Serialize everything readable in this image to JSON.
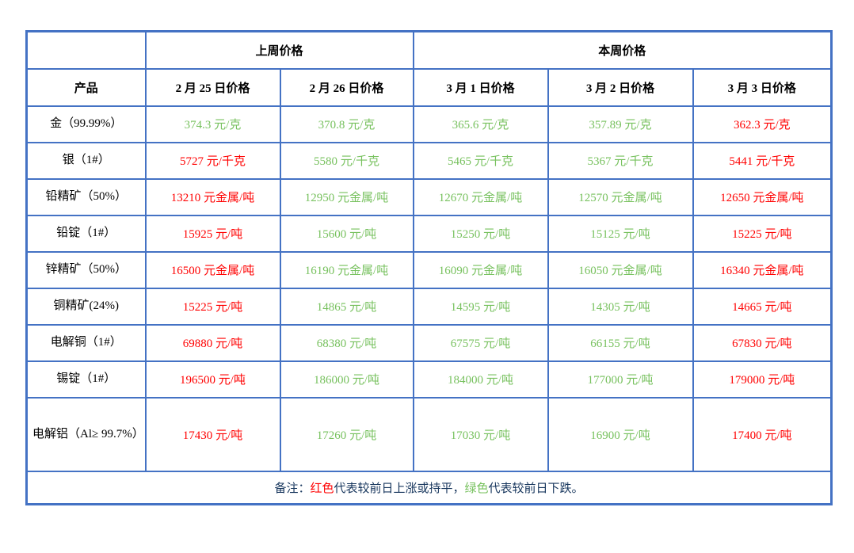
{
  "colors": {
    "border_blue": "#4472C4",
    "up_red": "#FF0000",
    "down_green": "#77C15E",
    "note_navy": "#17365D",
    "text_black": "#000000"
  },
  "table": {
    "group_headers": [
      {
        "label": "上周价格",
        "colspan": 2
      },
      {
        "label": "本周价格",
        "colspan": 3
      }
    ],
    "product_header": "产品",
    "date_headers": [
      "2 月 25 日价格",
      "2 月 26 日价格",
      "3 月 1 日价格",
      "3 月 2 日价格",
      "3 月 3 日价格"
    ],
    "rows": [
      {
        "product": "金（99.99%）",
        "prices": [
          {
            "text": "374.3 元/克",
            "trend": "down"
          },
          {
            "text": "370.8 元/克",
            "trend": "down"
          },
          {
            "text": "365.6 元/克",
            "trend": "down"
          },
          {
            "text": "357.89 元/克",
            "trend": "down"
          },
          {
            "text": "362.3 元/克",
            "trend": "up"
          }
        ]
      },
      {
        "product": "银（1#）",
        "prices": [
          {
            "text": "5727 元/千克",
            "trend": "up"
          },
          {
            "text": "5580 元/千克",
            "trend": "down"
          },
          {
            "text": "5465 元/千克",
            "trend": "down"
          },
          {
            "text": "5367 元/千克",
            "trend": "down"
          },
          {
            "text": "5441 元/千克",
            "trend": "up"
          }
        ]
      },
      {
        "product": "铅精矿（50%）",
        "prices": [
          {
            "text": "13210 元金属/吨",
            "trend": "up"
          },
          {
            "text": "12950 元金属/吨",
            "trend": "down"
          },
          {
            "text": "12670 元金属/吨",
            "trend": "down"
          },
          {
            "text": "12570 元金属/吨",
            "trend": "down"
          },
          {
            "text": "12650 元金属/吨",
            "trend": "up"
          }
        ]
      },
      {
        "product": "铅锭（1#）",
        "prices": [
          {
            "text": "15925 元/吨",
            "trend": "up"
          },
          {
            "text": "15600 元/吨",
            "trend": "down"
          },
          {
            "text": "15250 元/吨",
            "trend": "down"
          },
          {
            "text": "15125 元/吨",
            "trend": "down"
          },
          {
            "text": "15225 元/吨",
            "trend": "up"
          }
        ]
      },
      {
        "product": "锌精矿（50%）",
        "prices": [
          {
            "text": "16500 元金属/吨",
            "trend": "up"
          },
          {
            "text": "16190 元金属/吨",
            "trend": "down"
          },
          {
            "text": "16090 元金属/吨",
            "trend": "down"
          },
          {
            "text": "16050 元金属/吨",
            "trend": "down"
          },
          {
            "text": "16340 元金属/吨",
            "trend": "up"
          }
        ]
      },
      {
        "product": "铜精矿(24%)",
        "prices": [
          {
            "text": "15225 元/吨",
            "trend": "up"
          },
          {
            "text": "14865 元/吨",
            "trend": "down"
          },
          {
            "text": "14595 元/吨",
            "trend": "down"
          },
          {
            "text": "14305 元/吨",
            "trend": "down"
          },
          {
            "text": "14665 元/吨",
            "trend": "up"
          }
        ]
      },
      {
        "product": "电解铜（1#）",
        "prices": [
          {
            "text": "69880 元/吨",
            "trend": "up"
          },
          {
            "text": "68380 元/吨",
            "trend": "down"
          },
          {
            "text": "67575 元/吨",
            "trend": "down"
          },
          {
            "text": "66155 元/吨",
            "trend": "down"
          },
          {
            "text": "67830 元/吨",
            "trend": "up"
          }
        ]
      },
      {
        "product": "锡锭（1#）",
        "prices": [
          {
            "text": "196500 元/吨",
            "trend": "up"
          },
          {
            "text": "186000 元/吨",
            "trend": "down"
          },
          {
            "text": "184000 元/吨",
            "trend": "down"
          },
          {
            "text": "177000 元/吨",
            "trend": "down"
          },
          {
            "text": "179000 元/吨",
            "trend": "up"
          }
        ]
      },
      {
        "product": "电解铝（Al≥ 99.7%）",
        "tall": true,
        "prices": [
          {
            "text": "17430 元/吨",
            "trend": "up"
          },
          {
            "text": "17260 元/吨",
            "trend": "down"
          },
          {
            "text": "17030 元/吨",
            "trend": "down"
          },
          {
            "text": "16900 元/吨",
            "trend": "down"
          },
          {
            "text": "17400 元/吨",
            "trend": "up"
          }
        ]
      }
    ]
  },
  "note": {
    "segments": [
      {
        "text": "备注：",
        "color": "navy"
      },
      {
        "text": "红色",
        "color": "red"
      },
      {
        "text": "代表较前日上涨或持平，",
        "color": "navy"
      },
      {
        "text": "绿色",
        "color": "green"
      },
      {
        "text": "代表较前日下跌。",
        "color": "navy"
      }
    ]
  }
}
